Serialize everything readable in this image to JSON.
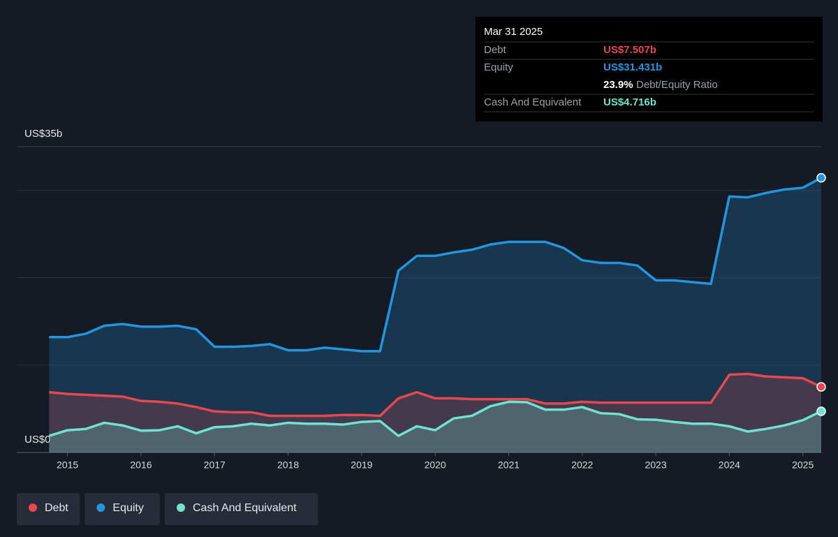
{
  "chart_data": {
    "type": "area",
    "x": [
      2014.75,
      2015.0,
      2015.25,
      2015.5,
      2015.75,
      2016.0,
      2016.25,
      2016.5,
      2016.75,
      2017.0,
      2017.25,
      2017.5,
      2017.75,
      2018.0,
      2018.25,
      2018.5,
      2018.75,
      2019.0,
      2019.25,
      2019.5,
      2019.75,
      2020.0,
      2020.25,
      2020.5,
      2020.75,
      2021.0,
      2021.25,
      2021.5,
      2021.75,
      2022.0,
      2022.25,
      2022.5,
      2022.75,
      2023.0,
      2023.25,
      2023.5,
      2023.75,
      2024.0,
      2024.25,
      2024.5,
      2024.75,
      2025.0,
      2025.25
    ],
    "series": [
      {
        "name": "Debt",
        "color": "#e8474f",
        "values": [
          6.9,
          6.7,
          6.6,
          6.5,
          6.4,
          5.9,
          5.8,
          5.6,
          5.2,
          4.7,
          4.6,
          4.6,
          4.2,
          4.2,
          4.2,
          4.2,
          4.3,
          4.3,
          4.2,
          6.2,
          6.9,
          6.2,
          6.2,
          6.1,
          6.1,
          6.1,
          6.1,
          5.6,
          5.6,
          5.8,
          5.7,
          5.7,
          5.7,
          5.7,
          5.7,
          5.7,
          5.7,
          8.9,
          9.0,
          8.7,
          8.6,
          8.5,
          7.507
        ]
      },
      {
        "name": "Equity",
        "color": "#2394df",
        "values": [
          13.2,
          13.2,
          13.6,
          14.5,
          14.7,
          14.4,
          14.4,
          14.5,
          14.1,
          12.1,
          12.1,
          12.2,
          12.4,
          11.7,
          11.7,
          12.0,
          11.8,
          11.6,
          11.6,
          20.8,
          22.5,
          22.5,
          22.9,
          23.2,
          23.8,
          24.1,
          24.1,
          24.1,
          23.4,
          22.0,
          21.7,
          21.7,
          21.4,
          19.7,
          19.7,
          19.5,
          19.3,
          29.3,
          29.2,
          29.7,
          30.1,
          30.3,
          31.431
        ]
      },
      {
        "name": "Cash And Equivalent",
        "color": "#6fe3cf",
        "values": [
          1.9,
          2.55,
          2.7,
          3.4,
          3.1,
          2.5,
          2.55,
          3.0,
          2.2,
          2.9,
          3.0,
          3.3,
          3.1,
          3.4,
          3.3,
          3.3,
          3.2,
          3.5,
          3.6,
          1.9,
          3.0,
          2.55,
          3.9,
          4.2,
          5.3,
          5.8,
          5.75,
          4.9,
          4.9,
          5.2,
          4.5,
          4.4,
          3.8,
          3.75,
          3.5,
          3.3,
          3.3,
          3.0,
          2.4,
          2.7,
          3.1,
          3.7,
          4.716
        ]
      }
    ],
    "xlim": [
      2014.31,
      2025.25
    ],
    "xticks": [
      2015,
      2016,
      2017,
      2018,
      2019,
      2020,
      2021,
      2022,
      2023,
      2024,
      2025
    ],
    "ylim": [
      0,
      35
    ],
    "yticks": [
      {
        "value": 0,
        "label": "US$0"
      },
      {
        "value": 35,
        "label": "US$35b"
      }
    ],
    "ygrid": [
      10,
      20,
      30
    ],
    "tooltip": {
      "date": "Mar 31 2025",
      "values": [
        "US$7.507b",
        "US$31.431b",
        "US$4.716b"
      ],
      "ratio": "23.9%",
      "ratio_label": "Debt/Equity Ratio"
    }
  }
}
